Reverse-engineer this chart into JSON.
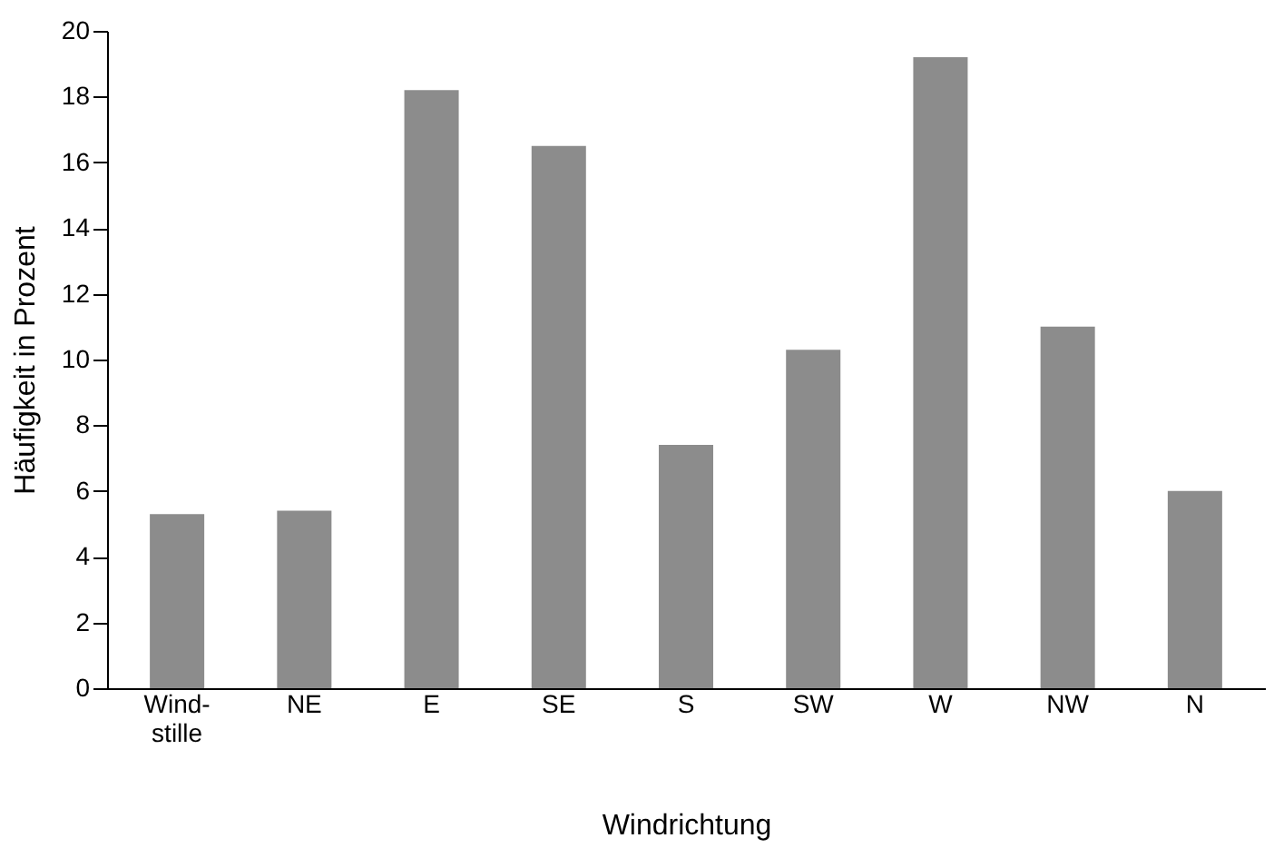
{
  "chart_data": {
    "type": "bar",
    "xlabel": "Windrichtung",
    "ylabel": "Häufigkeit in Prozent",
    "categories": [
      "Wind-\nstille",
      "NE",
      "E",
      "SE",
      "S",
      "SW",
      "W",
      "NW",
      "N"
    ],
    "values": [
      5.3,
      5.4,
      18.2,
      16.5,
      7.4,
      10.3,
      19.2,
      11.0,
      6.0
    ],
    "color": "#8c8c8c",
    "ylim": [
      0,
      20
    ],
    "yticks": [
      0,
      2,
      4,
      6,
      8,
      10,
      12,
      14,
      16,
      18,
      20
    ],
    "grid": false
  }
}
